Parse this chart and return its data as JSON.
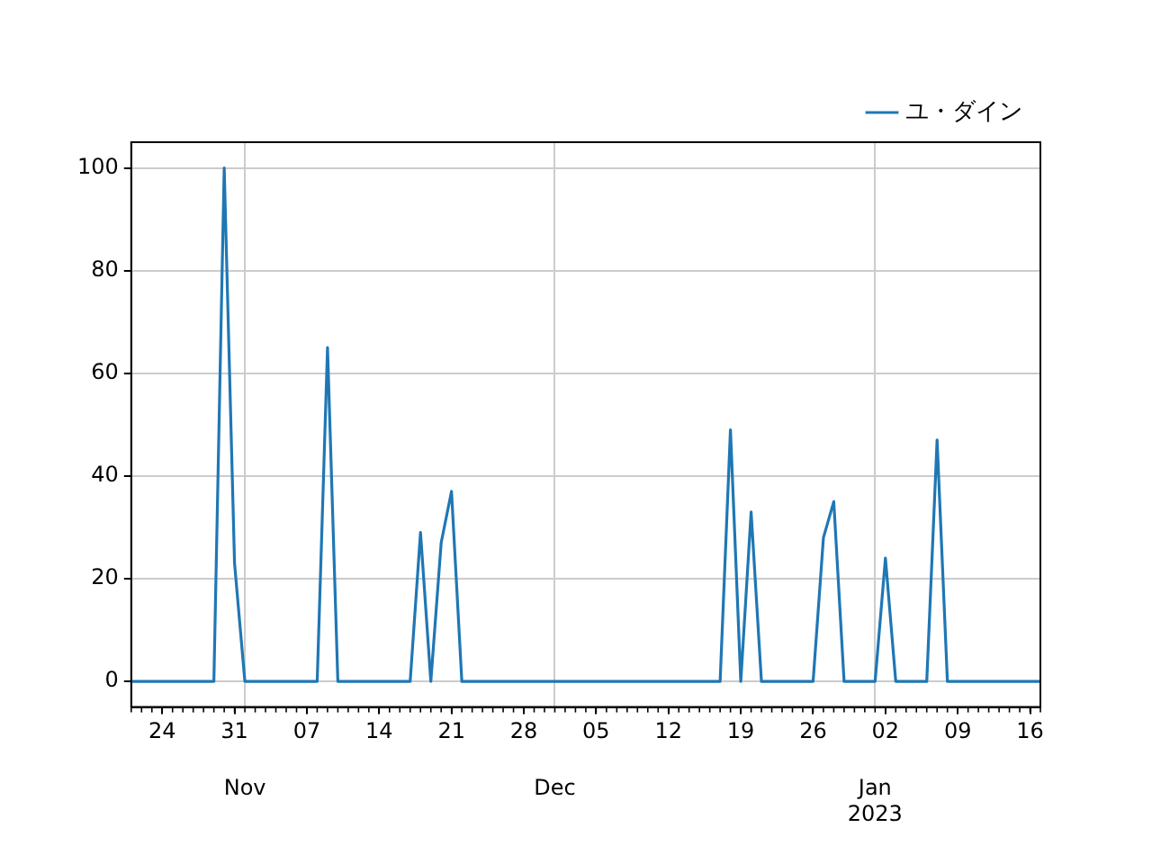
{
  "chart_data": {
    "type": "line",
    "x": [
      "2022-10-21",
      "2022-10-22",
      "2022-10-23",
      "2022-10-24",
      "2022-10-25",
      "2022-10-26",
      "2022-10-27",
      "2022-10-28",
      "2022-10-29",
      "2022-10-30",
      "2022-10-31",
      "2022-11-01",
      "2022-11-02",
      "2022-11-03",
      "2022-11-04",
      "2022-11-05",
      "2022-11-06",
      "2022-11-07",
      "2022-11-08",
      "2022-11-09",
      "2022-11-10",
      "2022-11-11",
      "2022-11-12",
      "2022-11-13",
      "2022-11-14",
      "2022-11-15",
      "2022-11-16",
      "2022-11-17",
      "2022-11-18",
      "2022-11-19",
      "2022-11-20",
      "2022-11-21",
      "2022-11-22",
      "2022-11-23",
      "2022-11-24",
      "2022-11-25",
      "2022-11-26",
      "2022-11-27",
      "2022-11-28",
      "2022-11-29",
      "2022-11-30",
      "2022-12-01",
      "2022-12-02",
      "2022-12-03",
      "2022-12-04",
      "2022-12-05",
      "2022-12-06",
      "2022-12-07",
      "2022-12-08",
      "2022-12-09",
      "2022-12-10",
      "2022-12-11",
      "2022-12-12",
      "2022-12-13",
      "2022-12-14",
      "2022-12-15",
      "2022-12-16",
      "2022-12-17",
      "2022-12-18",
      "2022-12-19",
      "2022-12-20",
      "2022-12-21",
      "2022-12-22",
      "2022-12-23",
      "2022-12-24",
      "2022-12-25",
      "2022-12-26",
      "2022-12-27",
      "2022-12-28",
      "2022-12-29",
      "2022-12-30",
      "2022-12-31",
      "2023-01-01",
      "2023-01-02",
      "2023-01-03",
      "2023-01-04",
      "2023-01-05",
      "2023-01-06",
      "2023-01-07",
      "2023-01-08",
      "2023-01-09",
      "2023-01-10",
      "2023-01-11",
      "2023-01-12",
      "2023-01-13",
      "2023-01-14",
      "2023-01-15",
      "2023-01-16",
      "2023-01-17"
    ],
    "series": [
      {
        "name": "ユ・ダイン",
        "color": "#1f77b4",
        "values": [
          0,
          0,
          0,
          0,
          0,
          0,
          0,
          0,
          0,
          100,
          23,
          0,
          0,
          0,
          0,
          0,
          0,
          0,
          0,
          65,
          0,
          0,
          0,
          0,
          0,
          0,
          0,
          0,
          29,
          0,
          27,
          37,
          0,
          0,
          0,
          0,
          0,
          0,
          0,
          0,
          0,
          0,
          0,
          0,
          0,
          0,
          0,
          0,
          0,
          0,
          0,
          0,
          0,
          0,
          0,
          0,
          0,
          0,
          49,
          0,
          33,
          0,
          0,
          0,
          0,
          0,
          0,
          28,
          35,
          0,
          0,
          0,
          0,
          24,
          0,
          0,
          0,
          0,
          47,
          0,
          0,
          0,
          0,
          0,
          0,
          0,
          0,
          0,
          0
        ]
      }
    ],
    "xlim": [
      "2022-10-21",
      "2023-01-17"
    ],
    "xticks": [
      {
        "value": "2022-10-24",
        "label": "24"
      },
      {
        "value": "2022-10-31",
        "label": "31"
      },
      {
        "value": "2022-11-07",
        "label": "07"
      },
      {
        "value": "2022-11-14",
        "label": "14"
      },
      {
        "value": "2022-11-21",
        "label": "21"
      },
      {
        "value": "2022-11-28",
        "label": "28"
      },
      {
        "value": "2022-12-05",
        "label": "05"
      },
      {
        "value": "2022-12-12",
        "label": "12"
      },
      {
        "value": "2022-12-19",
        "label": "19"
      },
      {
        "value": "2022-12-26",
        "label": "26"
      },
      {
        "value": "2023-01-02",
        "label": "02"
      },
      {
        "value": "2023-01-09",
        "label": "09"
      },
      {
        "value": "2023-01-16",
        "label": "16"
      }
    ],
    "x2lim": [
      "2022-10-21",
      "2023-01-17"
    ],
    "x2ticks": [
      {
        "value": "2022-11-01",
        "label": "Nov"
      },
      {
        "value": "2022-12-01",
        "label": "Dec"
      },
      {
        "value": "2023-01-01",
        "label": "Jan\n2023"
      }
    ],
    "ylim": [
      -5,
      105
    ],
    "yticks": [
      0,
      20,
      40,
      60,
      80,
      100
    ],
    "grid": true,
    "legend": "top right",
    "marker": "none",
    "line_style": "solid"
  }
}
